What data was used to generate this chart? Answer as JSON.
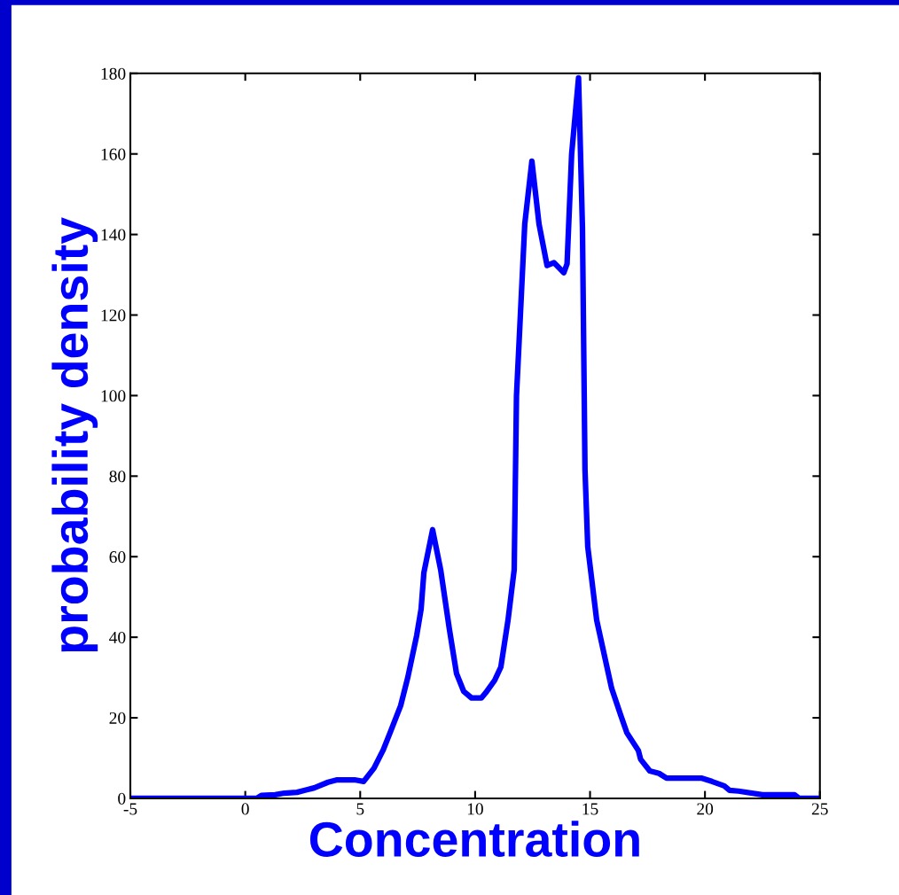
{
  "chart_data": {
    "type": "line",
    "xlabel": "Concentration",
    "ylabel": "probability density",
    "xlim": [
      -5,
      25
    ],
    "xticks": [
      -5,
      0,
      5,
      10,
      15,
      20,
      25
    ],
    "ylim": [
      0,
      180
    ],
    "yticks": [
      0,
      20,
      40,
      60,
      80,
      100,
      120,
      140,
      160,
      180
    ],
    "grid": false,
    "marker": "none",
    "line_style": "solid",
    "series": [
      {
        "color": "#0000ff",
        "x": [
          -5,
          0.5,
          0.7,
          1.3,
          1.7,
          2.25,
          2.6,
          3.0,
          3.6,
          4.0,
          4.75,
          5.15,
          5.6,
          6.0,
          6.3,
          6.76,
          7.07,
          7.46,
          7.65,
          7.77,
          8.15,
          8.5,
          8.88,
          9.19,
          9.5,
          9.85,
          10.27,
          10.46,
          10.85,
          11.12,
          11.43,
          11.7,
          11.8,
          12.16,
          12.47,
          12.78,
          13.13,
          13.43,
          13.86,
          14.0,
          14.2,
          14.5,
          14.67,
          14.78,
          14.9,
          15.29,
          15.94,
          16.33,
          16.6,
          17.1,
          17.2,
          17.6,
          18.0,
          18.33,
          19.87,
          20.3,
          20.84,
          21.07,
          21.46,
          22.5,
          23.9,
          24.1,
          25
        ],
        "values": [
          0,
          0,
          0.7,
          0.9,
          1.3,
          1.5,
          2,
          2.6,
          4,
          4.6,
          4.6,
          4.2,
          7.5,
          12,
          16.3,
          23,
          30,
          40.5,
          47,
          56,
          66.7,
          56.8,
          42,
          31,
          26.6,
          24.9,
          24.9,
          26.2,
          29.3,
          32.6,
          44.2,
          56.8,
          100,
          142.6,
          158.2,
          142.6,
          132.3,
          133,
          130.5,
          132.7,
          160,
          178.9,
          141.7,
          81.6,
          62.5,
          44.2,
          27.3,
          20.7,
          16.3,
          11.9,
          9.7,
          6.8,
          6.2,
          5,
          5,
          4.2,
          3.1,
          2,
          1.8,
          0.9,
          0.9,
          0,
          0
        ]
      }
    ]
  }
}
